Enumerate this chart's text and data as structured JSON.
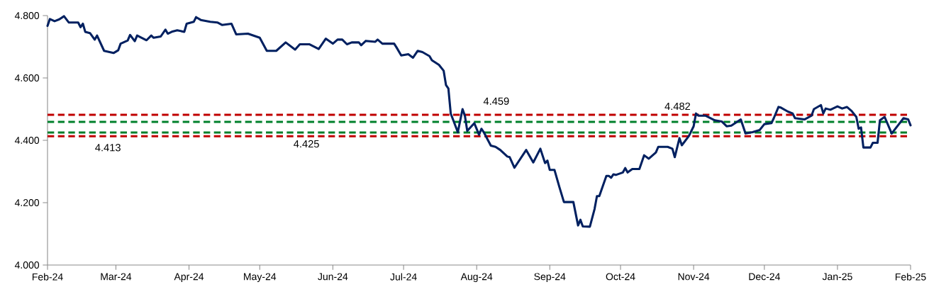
{
  "chart_data": {
    "type": "line",
    "x": [
      "2024-02-01",
      "2024-02-02",
      "2024-02-04",
      "2024-02-06",
      "2024-02-08",
      "2024-02-10",
      "2024-02-14",
      "2024-02-15",
      "2024-02-16",
      "2024-02-17",
      "2024-02-19",
      "2024-02-21",
      "2024-02-22",
      "2024-02-25",
      "2024-02-29",
      "2024-03-02",
      "2024-03-03",
      "2024-03-06",
      "2024-03-07",
      "2024-03-09",
      "2024-03-10",
      "2024-03-14",
      "2024-03-16",
      "2024-03-17",
      "2024-03-20",
      "2024-03-22",
      "2024-03-23",
      "2024-03-25",
      "2024-03-27",
      "2024-03-30",
      "2024-03-31",
      "2024-04-03",
      "2024-04-04",
      "2024-04-06",
      "2024-04-10",
      "2024-04-13",
      "2024-04-15",
      "2024-04-19",
      "2024-04-21",
      "2024-04-26",
      "2024-05-01",
      "2024-05-04",
      "2024-05-08",
      "2024-05-12",
      "2024-05-16",
      "2024-05-18",
      "2024-05-22",
      "2024-05-26",
      "2024-05-29",
      "2024-06-01",
      "2024-06-03",
      "2024-06-05",
      "2024-06-07",
      "2024-06-09",
      "2024-06-12",
      "2024-06-13",
      "2024-06-15",
      "2024-06-19",
      "2024-06-20",
      "2024-06-22",
      "2024-06-27",
      "2024-06-28",
      "2024-06-30",
      "2024-07-03",
      "2024-07-05",
      "2024-07-07",
      "2024-07-09",
      "2024-07-12",
      "2024-07-13",
      "2024-07-16",
      "2024-07-18",
      "2024-07-19",
      "2024-07-20",
      "2024-07-21",
      "2024-07-24",
      "2024-07-26",
      "2024-07-27",
      "2024-07-28",
      "2024-07-31",
      "2024-08-02",
      "2024-08-03",
      "2024-08-04",
      "2024-08-07",
      "2024-08-09",
      "2024-08-11",
      "2024-08-14",
      "2024-08-15",
      "2024-08-17",
      "2024-08-22",
      "2024-08-25",
      "2024-08-28",
      "2024-08-30",
      "2024-08-31",
      "2024-09-01",
      "2024-09-03",
      "2024-09-05",
      "2024-09-07",
      "2024-09-11",
      "2024-09-13",
      "2024-09-14",
      "2024-09-15",
      "2024-09-18",
      "2024-09-20",
      "2024-09-21",
      "2024-09-22",
      "2024-09-25",
      "2024-09-26",
      "2024-09-27",
      "2024-09-28",
      "2024-09-29",
      "2024-10-02",
      "2024-10-03",
      "2024-10-04",
      "2024-10-06",
      "2024-10-09",
      "2024-10-11",
      "2024-10-13",
      "2024-10-16",
      "2024-10-17",
      "2024-10-21",
      "2024-10-23",
      "2024-10-24",
      "2024-10-26",
      "2024-10-27",
      "2024-10-30",
      "2024-11-01",
      "2024-11-02",
      "2024-11-03",
      "2024-11-06",
      "2024-11-10",
      "2024-11-13",
      "2024-11-15",
      "2024-11-17",
      "2024-11-21",
      "2024-11-23",
      "2024-11-26",
      "2024-11-29",
      "2024-12-01",
      "2024-12-04",
      "2024-12-05",
      "2024-12-07",
      "2024-12-08",
      "2024-12-11",
      "2024-12-13",
      "2024-12-14",
      "2024-12-18",
      "2024-12-21",
      "2024-12-22",
      "2024-12-25",
      "2024-12-26",
      "2024-12-27",
      "2024-12-29",
      "2025-01-01",
      "2025-01-03",
      "2025-01-05",
      "2025-01-07",
      "2025-01-09",
      "2025-01-10",
      "2025-01-11",
      "2025-01-12",
      "2025-01-15",
      "2025-01-16",
      "2025-01-18",
      "2025-01-19",
      "2025-01-21",
      "2025-01-24",
      "2025-01-29",
      "2025-01-31",
      "2025-02-01"
    ],
    "series": [
      {
        "color": "#002060",
        "values": [
          4.767,
          4.789,
          4.782,
          4.788,
          4.798,
          4.778,
          4.778,
          4.763,
          4.774,
          4.748,
          4.744,
          4.723,
          4.736,
          4.687,
          4.68,
          4.689,
          4.71,
          4.72,
          4.738,
          4.718,
          4.736,
          4.721,
          4.736,
          4.729,
          4.733,
          4.755,
          4.742,
          4.749,
          4.753,
          4.748,
          4.774,
          4.78,
          4.795,
          4.786,
          4.78,
          4.778,
          4.77,
          4.774,
          4.74,
          4.742,
          4.729,
          4.687,
          4.687,
          4.714,
          4.691,
          4.708,
          4.708,
          4.693,
          4.726,
          4.71,
          4.723,
          4.723,
          4.708,
          4.714,
          4.714,
          4.705,
          4.719,
          4.716,
          4.723,
          4.71,
          4.71,
          4.698,
          4.672,
          4.676,
          4.665,
          4.687,
          4.683,
          4.67,
          4.657,
          4.642,
          4.623,
          4.577,
          4.566,
          4.486,
          4.426,
          4.5,
          4.479,
          4.43,
          4.455,
          4.418,
          4.437,
          4.426,
          4.383,
          4.379,
          4.369,
          4.348,
          4.346,
          4.312,
          4.369,
          4.329,
          4.373,
          4.327,
          4.335,
          4.305,
          4.305,
          4.252,
          4.202,
          4.202,
          4.127,
          4.145,
          4.124,
          4.123,
          4.18,
          4.221,
          4.221,
          4.286,
          4.286,
          4.28,
          4.291,
          4.289,
          4.297,
          4.311,
          4.297,
          4.308,
          4.308,
          4.352,
          4.341,
          4.361,
          4.379,
          4.379,
          4.373,
          4.346,
          4.407,
          4.384,
          4.414,
          4.445,
          4.486,
          4.479,
          4.479,
          4.464,
          4.46,
          4.445,
          4.447,
          4.467,
          4.422,
          4.426,
          4.433,
          4.452,
          4.455,
          4.471,
          4.507,
          4.505,
          4.492,
          4.486,
          4.471,
          4.467,
          4.479,
          4.5,
          4.513,
          4.486,
          4.502,
          4.498,
          4.509,
          4.502,
          4.507,
          4.494,
          4.475,
          4.437,
          4.441,
          4.377,
          4.377,
          4.392,
          4.392,
          4.464,
          4.475,
          4.422,
          4.471,
          4.467,
          4.448
        ]
      }
    ],
    "xlim": [
      "2024-02-01",
      "2025-02-01"
    ],
    "xticks": [
      {
        "value": "2024-02-01",
        "label": "Feb-24"
      },
      {
        "value": "2024-03-01",
        "label": "Mar-24"
      },
      {
        "value": "2024-04-01",
        "label": "Apr-24"
      },
      {
        "value": "2024-05-01",
        "label": "May-24"
      },
      {
        "value": "2024-06-01",
        "label": "Jun-24"
      },
      {
        "value": "2024-07-01",
        "label": "Jul-24"
      },
      {
        "value": "2024-08-01",
        "label": "Aug-24"
      },
      {
        "value": "2024-09-01",
        "label": "Sep-24"
      },
      {
        "value": "2024-10-01",
        "label": "Oct-24"
      },
      {
        "value": "2024-11-01",
        "label": "Nov-24"
      },
      {
        "value": "2024-12-01",
        "label": "Dec-24"
      },
      {
        "value": "2025-01-01",
        "label": "Jan-25"
      },
      {
        "value": "2025-02-01",
        "label": "Feb-25"
      }
    ],
    "ylim": [
      4.0,
      4.8
    ],
    "yticks": [
      {
        "value": 4.0,
        "label": "4.000"
      },
      {
        "value": 4.2,
        "label": "4.200"
      },
      {
        "value": 4.4,
        "label": "4.400"
      },
      {
        "value": 4.6,
        "label": "4.600"
      },
      {
        "value": 4.8,
        "label": "4.800"
      }
    ],
    "ref_lines": [
      {
        "axis": "y",
        "value": 4.482,
        "label": "4.482",
        "color": "#c00000",
        "line_style": "dashed"
      },
      {
        "axis": "y",
        "value": 4.459,
        "label": "4.459",
        "color": "#00802b",
        "line_style": "dashed"
      },
      {
        "axis": "y",
        "value": 4.425,
        "label": "4.425",
        "color": "#00802b",
        "line_style": "dashed"
      },
      {
        "axis": "y",
        "value": 4.413,
        "label": "4.413",
        "color": "#c00000",
        "line_style": "dashed"
      }
    ],
    "line_style": "solid"
  }
}
